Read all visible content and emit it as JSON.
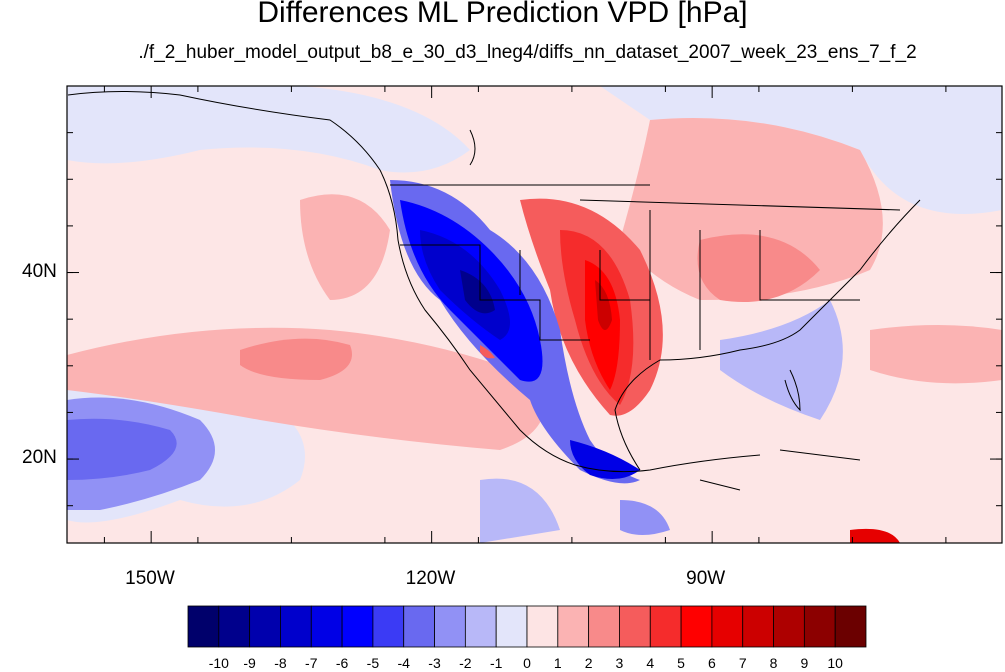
{
  "title": "Differences ML Prediction VPD [hPa]",
  "subtitle": "./f_2_huber_model_output_b8_e_30_d3_lneg4/diffs_nn_dataset_2007_week_23_ens_7_f_2",
  "axes": {
    "x_ticks": [
      {
        "value": -150,
        "label": "150W"
      },
      {
        "value": -120,
        "label": "120W"
      },
      {
        "value": -90,
        "label": "90W"
      }
    ],
    "y_ticks": [
      {
        "value": 40,
        "label": "40N"
      },
      {
        "value": 20,
        "label": "20N"
      }
    ],
    "lon_range": [
      -159,
      -59
    ],
    "lat_range": [
      11,
      60
    ]
  },
  "colorbar": {
    "labels": [
      "-10",
      "-9",
      "-8",
      "-7",
      "-6",
      "-5",
      "-4",
      "-3",
      "-2",
      "-1",
      "0",
      "1",
      "2",
      "3",
      "4",
      "5",
      "6",
      "7",
      "8",
      "9",
      "10"
    ],
    "colors": [
      "#00006b",
      "#00008c",
      "#0000ad",
      "#0000cc",
      "#0000e6",
      "#0000ff",
      "#3b3bf5",
      "#6969f0",
      "#9191f5",
      "#b8b8f8",
      "#e3e5fa",
      "#fde4e4",
      "#fbb3b3",
      "#f88a8a",
      "#f55c5c",
      "#f52c2c",
      "#ff0000",
      "#e60000",
      "#cc0000",
      "#ad0000",
      "#8c0000",
      "#6b0000"
    ]
  },
  "colors": {
    "background_field": "#fde6e6",
    "land_border": "#000000"
  }
}
